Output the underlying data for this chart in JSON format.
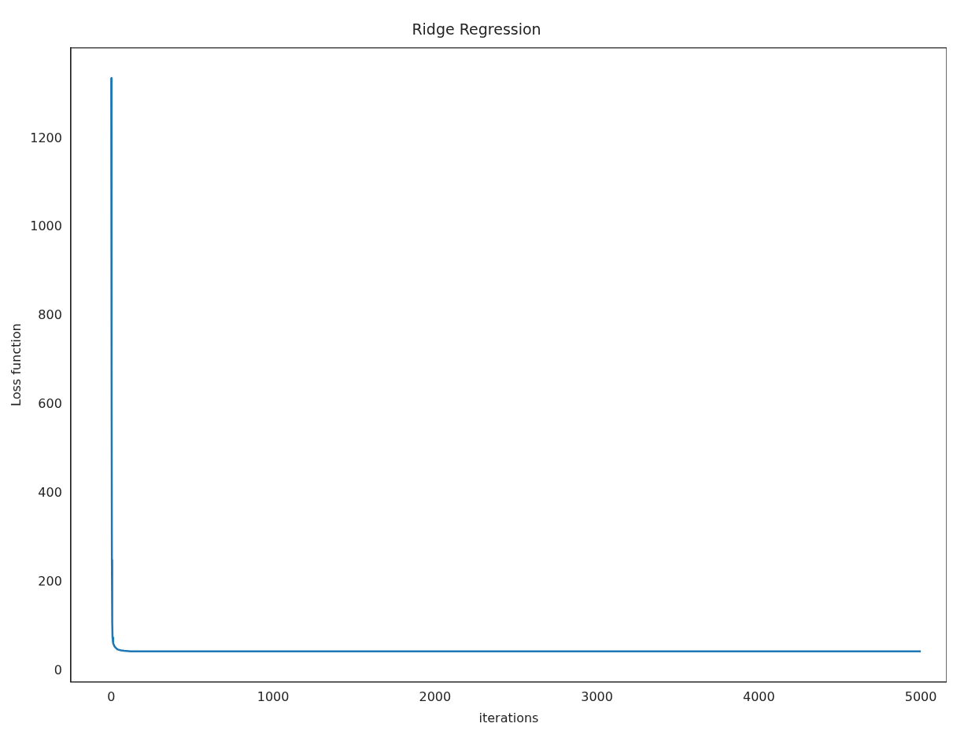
{
  "chart_data": {
    "type": "line",
    "title": "Ridge Regression",
    "xlabel": "iterations",
    "ylabel": "Loss function",
    "series": [
      {
        "color": "#1f77b4",
        "x": [
          0,
          2,
          4,
          6,
          8,
          12,
          20,
          30,
          40,
          60,
          80,
          120,
          200,
          500,
          1000,
          2000,
          3000,
          4000,
          5000
        ],
        "values": [
          1337,
          700,
          250,
          110,
          75,
          62,
          55,
          51,
          48,
          46,
          45,
          44,
          44,
          44,
          44,
          44,
          44,
          44,
          44
        ]
      }
    ],
    "xlim": [
      -250,
      5160
    ],
    "xticks": [
      0,
      1000,
      2000,
      3000,
      4000,
      5000
    ],
    "ylim": [
      -25,
      1405
    ],
    "yticks": [
      0,
      200,
      400,
      600,
      800,
      1000,
      1200
    ],
    "grid": false,
    "legend": false,
    "marker": "none",
    "line_style": "solid"
  }
}
